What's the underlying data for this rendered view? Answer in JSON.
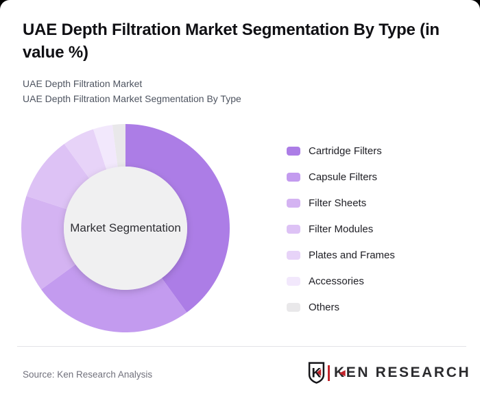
{
  "page": {
    "title": "UAE Depth Filtration Market Segmentation By Type (in value %)",
    "subtitle_line1": "UAE Depth Filtration Market",
    "subtitle_line2": "UAE Depth Filtration Market Segmentation By Type",
    "source": "Source: Ken Research Analysis"
  },
  "logo": {
    "brand": "KEN RESEARCH",
    "monogram": "K",
    "red": "#c2242b",
    "dark": "#2b2b2e"
  },
  "icons": {
    "red_triangle": "◀"
  },
  "colors": {
    "card_bg": "#ffffff",
    "corner_bg": "#000000",
    "divider": "#e3e3e7",
    "title_text": "#101014",
    "subtitle_text": "#4e5460",
    "source_text": "#71717c"
  },
  "chart_data": {
    "type": "pie",
    "donut": true,
    "title": "UAE Depth Filtration Market Segmentation By Type (in value %)",
    "center_label": "Market Segmentation",
    "categories": [
      "Cartridge Filters",
      "Capsule Filters",
      "Filter Sheets",
      "Filter Modules",
      "Plates and Frames",
      "Accessories",
      "Others"
    ],
    "values": [
      40,
      25,
      15,
      10,
      5,
      3,
      2
    ],
    "unit": "%",
    "colors": [
      "#ac7de6",
      "#c39bef",
      "#d4b3f2",
      "#ddc2f5",
      "#e7d3f8",
      "#f2e8fc",
      "#e9e8ea"
    ],
    "start_angle_deg": 0,
    "direction": "clockwise",
    "legend_position": "right",
    "inner_radius_ratio": 0.59,
    "inner_fill": "#f0f0f1"
  }
}
